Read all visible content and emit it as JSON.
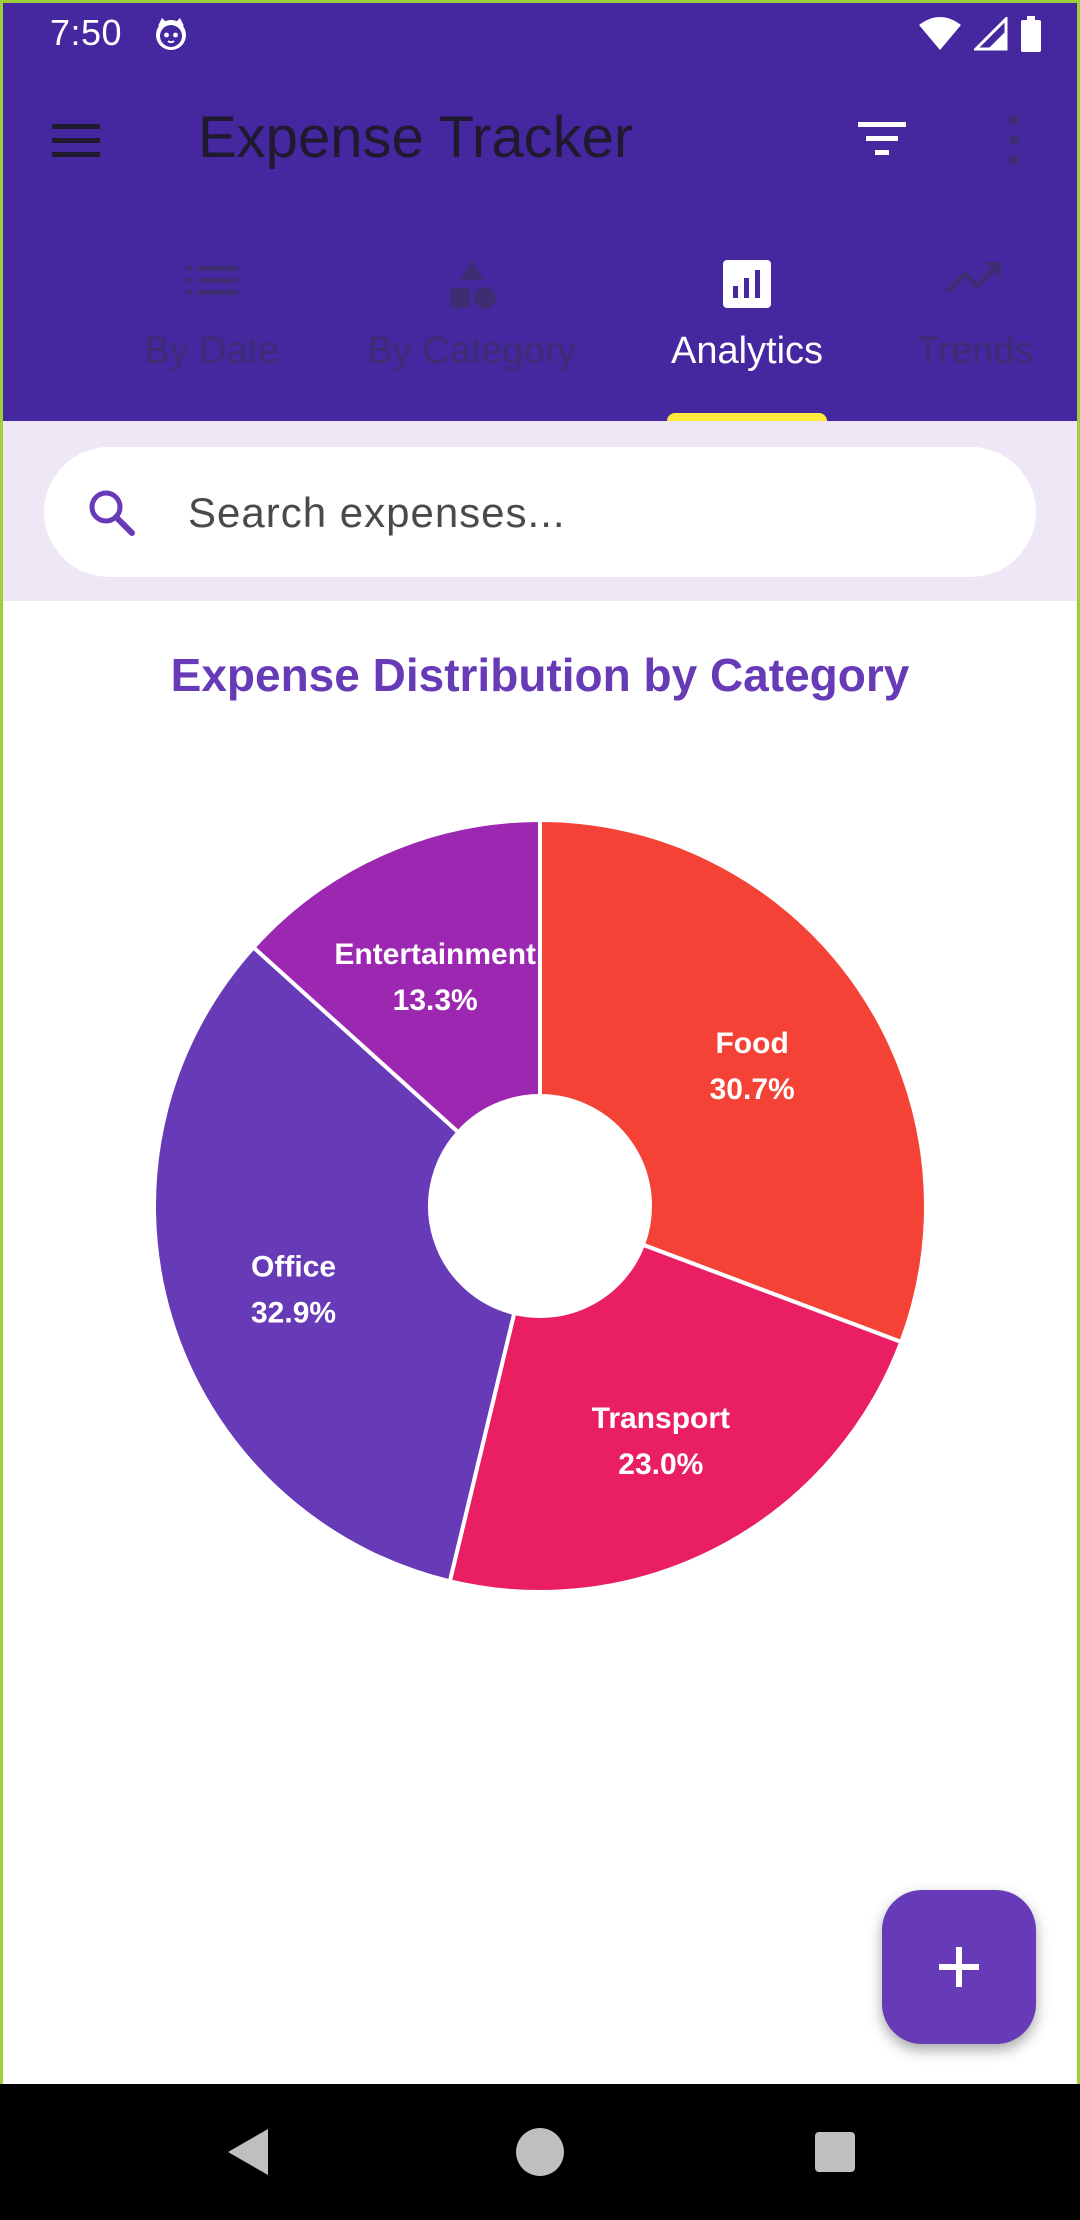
{
  "status_bar": {
    "time": "7:50",
    "app_icon": "cat-face-icon",
    "indicators": [
      "wifi-icon",
      "signal-icon",
      "battery-icon"
    ]
  },
  "toolbar": {
    "title": "Expense Tracker",
    "menu_icon": "hamburger-menu-icon",
    "filter_icon": "filter-icon",
    "more_icon": "more-vert-icon"
  },
  "tabs": [
    {
      "label": "By Date",
      "icon": "list-icon",
      "active": false
    },
    {
      "label": "By Category",
      "icon": "category-shapes-icon",
      "active": false
    },
    {
      "label": "Analytics",
      "icon": "analytics-icon",
      "active": true
    },
    {
      "label": "Trends",
      "icon": "trending-up-icon",
      "active": false
    }
  ],
  "search": {
    "placeholder": "Search expenses...",
    "value": ""
  },
  "colors": {
    "appbar": "#4527a0",
    "accent": "#673ab7",
    "tab_indicator": "#ffeb3b",
    "search_bg": "#ede7f6"
  },
  "chart_data": {
    "type": "pie",
    "title": "Expense Distribution by Category",
    "donut": true,
    "slices": [
      {
        "name": "Food",
        "percent": 30.7,
        "label": "30.7%",
        "color": "#f44336"
      },
      {
        "name": "Transport",
        "percent": 23.0,
        "label": "23.0%",
        "color": "#e91e63"
      },
      {
        "name": "Office",
        "percent": 32.9,
        "label": "32.9%",
        "color": "#673ab7"
      },
      {
        "name": "Entertainment",
        "percent": 13.3,
        "label": "13.3%",
        "color": "#9c27b0"
      }
    ]
  },
  "fab": {
    "icon": "add-icon"
  },
  "nav_bar": {
    "buttons": [
      "back-icon",
      "home-icon",
      "recents-icon"
    ]
  }
}
